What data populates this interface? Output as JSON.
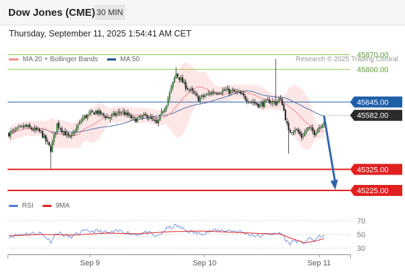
{
  "header": {
    "title": "Dow Jones (CME)",
    "interval": "30 MIN",
    "datetime": "Thursday, September 11, 2025 1:54:41 AM CET",
    "credit": "Research © 2025 Trading Central"
  },
  "legend": {
    "ma20_label": "MA 20 + Bollinger Bands",
    "ma50_label": "MA 50",
    "rsi_label": "RSI",
    "ma9_label": "9MA"
  },
  "colors": {
    "candle": "#2e7d32",
    "ma20": "#f28a8a",
    "bollinger_fill": "#fde0e0",
    "ma50": "#4a6fa5",
    "resistance": "#8bc34a",
    "support": "#e02020",
    "pivot": "#1f5fa8",
    "arrow": "#2f65b0",
    "rsi": "#6688dd",
    "rsi_ma": "#e02020"
  },
  "chart_data": [
    {
      "type": "candlestick",
      "ylim": [
        45150,
        45950
      ],
      "x_ticks": [
        "Sep 9",
        "Sep 10",
        "Sep 11"
      ],
      "horizontal_levels": [
        {
          "value": 45870,
          "label": "45870.00",
          "kind": "resistance"
        },
        {
          "value": 45800,
          "label": "45800.00",
          "kind": "resistance"
        },
        {
          "value": 45645,
          "label": "45645.00",
          "kind": "pivot"
        },
        {
          "value": 45582,
          "label": "45582.00",
          "kind": "last"
        },
        {
          "value": 45325,
          "label": "45325.00",
          "kind": "support"
        },
        {
          "value": 45225,
          "label": "45225.00",
          "kind": "support"
        }
      ],
      "close_anchors": [
        [
          0,
          45495
        ],
        [
          10,
          45530
        ],
        [
          20,
          45500
        ],
        [
          26,
          45420
        ],
        [
          30,
          45540
        ],
        [
          38,
          45470
        ],
        [
          46,
          45570
        ],
        [
          54,
          45600
        ],
        [
          62,
          45570
        ],
        [
          70,
          45600
        ],
        [
          78,
          45560
        ],
        [
          86,
          45580
        ],
        [
          92,
          45540
        ],
        [
          98,
          45640
        ],
        [
          104,
          45780
        ],
        [
          110,
          45720
        ],
        [
          118,
          45660
        ],
        [
          126,
          45690
        ],
        [
          134,
          45700
        ],
        [
          142,
          45690
        ],
        [
          150,
          45650
        ],
        [
          156,
          45630
        ],
        [
          162,
          45650
        ],
        [
          166,
          45640
        ],
        [
          168,
          45660
        ],
        [
          170,
          45640
        ],
        [
          174,
          45500
        ],
        [
          178,
          45520
        ],
        [
          182,
          45480
        ],
        [
          186,
          45520
        ],
        [
          190,
          45500
        ],
        [
          196,
          45555
        ]
      ],
      "arrow": {
        "from": [
          196,
          45580
        ],
        "to": [
          203,
          45228
        ]
      }
    },
    {
      "type": "line",
      "name": "RSI",
      "yticks": [
        70,
        50,
        30
      ],
      "ylim": [
        25,
        75
      ],
      "anchors": [
        [
          0,
          47
        ],
        [
          10,
          51
        ],
        [
          20,
          52
        ],
        [
          26,
          40
        ],
        [
          30,
          53
        ],
        [
          38,
          46
        ],
        [
          46,
          54
        ],
        [
          54,
          55
        ],
        [
          62,
          52
        ],
        [
          70,
          55
        ],
        [
          78,
          50
        ],
        [
          86,
          53
        ],
        [
          92,
          46
        ],
        [
          98,
          58
        ],
        [
          104,
          63
        ],
        [
          110,
          56
        ],
        [
          118,
          51
        ],
        [
          126,
          55
        ],
        [
          134,
          56
        ],
        [
          142,
          55
        ],
        [
          150,
          50
        ],
        [
          156,
          47
        ],
        [
          162,
          52
        ],
        [
          166,
          49
        ],
        [
          168,
          53
        ],
        [
          170,
          50
        ],
        [
          174,
          36
        ],
        [
          178,
          42
        ],
        [
          182,
          36
        ],
        [
          186,
          43
        ],
        [
          190,
          42
        ],
        [
          196,
          50
        ]
      ],
      "ma_anchors": [
        [
          0,
          48
        ],
        [
          20,
          50
        ],
        [
          40,
          49
        ],
        [
          60,
          52
        ],
        [
          80,
          51
        ],
        [
          100,
          54
        ],
        [
          120,
          55
        ],
        [
          140,
          53
        ],
        [
          160,
          51
        ],
        [
          168,
          51
        ],
        [
          176,
          44
        ],
        [
          184,
          38
        ],
        [
          190,
          40
        ],
        [
          196,
          44
        ]
      ]
    }
  ]
}
